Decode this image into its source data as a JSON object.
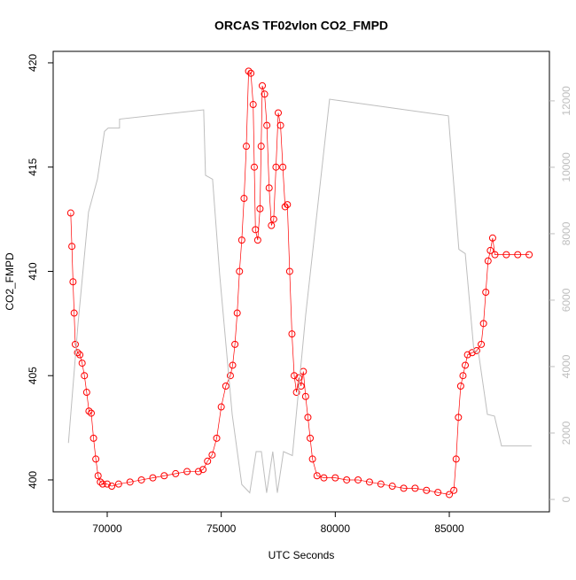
{
  "chart_data": {
    "type": "line",
    "title": "ORCAS TF02vlon CO2_FMPD",
    "x_label": "UTC Seconds",
    "y_label": "CO2_FMPD",
    "xlim": [
      67630,
      89390
    ],
    "xticks": [
      70000,
      75000,
      80000,
      85000
    ],
    "ylim": [
      398.47,
      420.55
    ],
    "yticks": [
      400,
      405,
      410,
      415,
      420
    ],
    "y2lim": [
      -373,
      13490
    ],
    "y2ticks": [
      0,
      2000,
      4000,
      6000,
      8000,
      10000,
      12000
    ],
    "series": [
      {
        "color": "#ff0000",
        "marker": "circle",
        "x": [
          68400,
          68450,
          68500,
          68550,
          68600,
          68700,
          68800,
          68900,
          69000,
          69100,
          69200,
          69300,
          69400,
          69500,
          69600,
          69700,
          69800,
          70000,
          70200,
          70500,
          71000,
          71500,
          72000,
          72500,
          73000,
          73500,
          74000,
          74200,
          74400,
          74600,
          74800,
          75000,
          75200,
          75400,
          75500,
          75600,
          75700,
          75800,
          75900,
          76000,
          76100,
          76200,
          76300,
          76400,
          76450,
          76500,
          76600,
          76700,
          76750,
          76800,
          76900,
          77000,
          77100,
          77200,
          77300,
          77400,
          77500,
          77600,
          77700,
          77800,
          77900,
          78000,
          78100,
          78200,
          78300,
          78400,
          78500,
          78600,
          78700,
          78800,
          78900,
          79000,
          79200,
          79500,
          80000,
          80500,
          81000,
          81500,
          82000,
          82500,
          83000,
          83500,
          84000,
          84500,
          85000,
          85200,
          85300,
          85400,
          85500,
          85600,
          85700,
          85800,
          86000,
          86200,
          86400,
          86500,
          86600,
          86700,
          86800,
          86900,
          87000,
          87500,
          88000,
          88500
        ],
        "values": [
          412.8,
          411.2,
          409.5,
          408,
          406.5,
          406.1,
          406,
          405.6,
          405,
          404.2,
          403.3,
          403.2,
          402,
          401,
          400.2,
          399.9,
          399.8,
          399.8,
          399.7,
          399.8,
          399.9,
          400,
          400.1,
          400.2,
          400.3,
          400.4,
          400.4,
          400.5,
          400.9,
          401.2,
          402,
          403.5,
          404.5,
          405,
          405.5,
          406.5,
          408,
          410,
          411.5,
          413.5,
          416,
          419.6,
          419.5,
          418,
          415,
          412,
          411.5,
          413,
          416,
          418.9,
          418.5,
          417,
          414,
          412.2,
          412.5,
          415,
          417.6,
          417,
          415,
          413.1,
          413.2,
          410,
          407,
          405,
          404.2,
          404.9,
          404.5,
          405.2,
          404,
          403,
          402,
          401,
          400.2,
          400.1,
          400.1,
          400,
          400,
          399.9,
          399.8,
          399.7,
          399.6,
          399.6,
          399.5,
          399.4,
          399.3,
          399.5,
          401,
          403,
          404.5,
          405,
          405.5,
          406,
          406.1,
          406.2,
          406.5,
          407.5,
          409,
          410.5,
          411,
          411.6,
          410.8,
          410.8,
          410.8,
          410.8
        ]
      },
      {
        "color": "#bebebe",
        "axis": "y2",
        "x": [
          68300,
          68720,
          69180,
          69570,
          69880,
          70040,
          70540,
          70540,
          74230,
          74310,
          74620,
          74930,
          75480,
          75900,
          76250,
          76530,
          76760,
          76990,
          77260,
          77460,
          77730,
          78120,
          78700,
          79750,
          80260,
          84960,
          85420,
          85700,
          86080,
          86280,
          86670,
          86980,
          87290,
          88610
        ],
        "values": [
          1700,
          5290,
          8650,
          9640,
          11080,
          11180,
          11180,
          11450,
          11730,
          9760,
          9640,
          6780,
          2560,
          450,
          200,
          1440,
          1440,
          200,
          1440,
          200,
          1440,
          1320,
          5540,
          12050,
          12000,
          11550,
          7530,
          7400,
          4470,
          4420,
          2560,
          2510,
          1610,
          1610
        ]
      }
    ]
  }
}
